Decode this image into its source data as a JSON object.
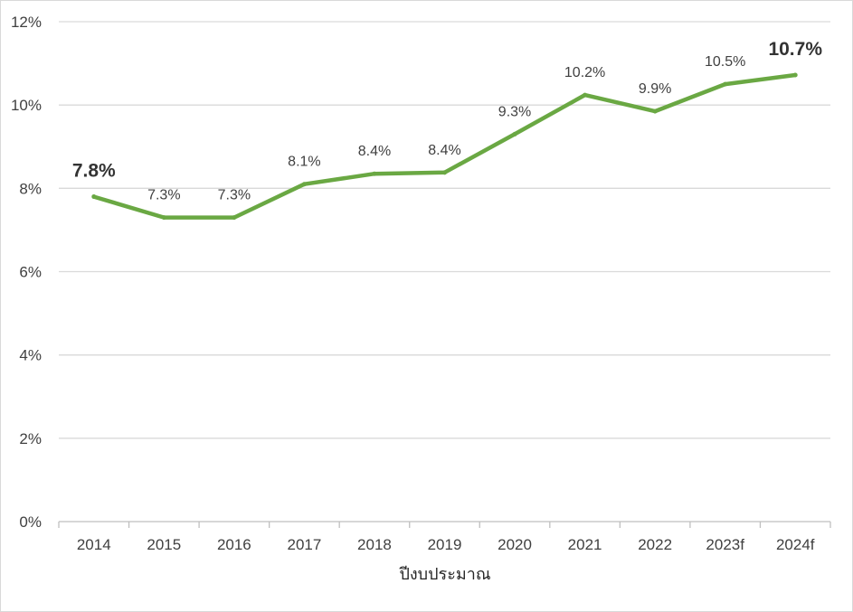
{
  "chart_data": {
    "type": "line",
    "title": "",
    "xlabel": "ปีงบประมาณ",
    "ylabel": "",
    "categories": [
      "2014",
      "2015",
      "2016",
      "2017",
      "2018",
      "2019",
      "2020",
      "2021",
      "2022",
      "2023f",
      "2024f"
    ],
    "series": [
      {
        "name": "",
        "values": [
          7.8,
          7.3,
          7.3,
          8.1,
          8.35,
          8.38,
          9.3,
          10.24,
          9.85,
          10.5,
          10.72
        ],
        "labels": [
          "7.8%",
          "7.3%",
          "7.3%",
          "8.1%",
          "8.4%",
          "8.4%",
          "9.3%",
          "10.2%",
          "9.9%",
          "10.5%",
          "10.7%"
        ],
        "highlighted": [
          true,
          false,
          false,
          false,
          false,
          false,
          false,
          false,
          false,
          false,
          true
        ],
        "color": "#6aa843"
      }
    ],
    "ylim": [
      0,
      12
    ],
    "yticks": [
      0,
      2,
      4,
      6,
      8,
      10,
      12
    ],
    "ytick_labels": [
      "0%",
      "2%",
      "4%",
      "6%",
      "8%",
      "10%",
      "12%"
    ],
    "grid": true,
    "legend": "none"
  },
  "colors": {
    "line": "#6aa843",
    "grid": "#d9d9d9",
    "axis": "#bfbfbf",
    "text": "#404040"
  }
}
